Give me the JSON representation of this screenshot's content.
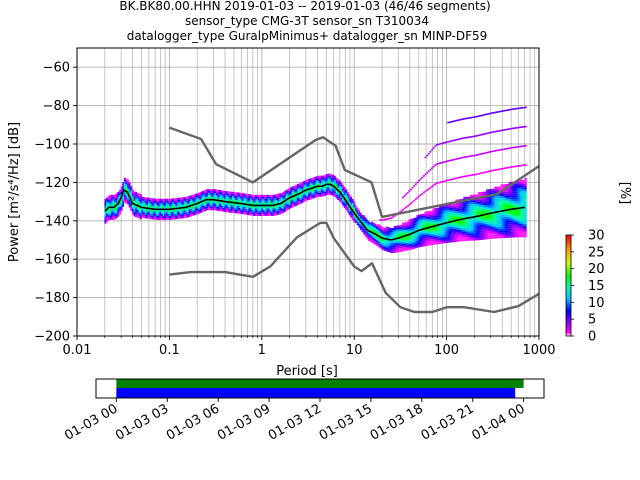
{
  "colors": {
    "background": "#ffffff",
    "noise_model": "#666666",
    "mode_line": "#000000",
    "grid": "#b0b0b0",
    "axes": "#000000",
    "coverage_data": "#0000ff",
    "coverage_gaps": "#008000"
  },
  "chart_data": [
    {
      "type": "heatmap",
      "title_lines": [
        "BK.BK80.00.HHN   2019-01-03 -- 2019-01-03  (46/46 segments)",
        "sensor_type CMG-3T sensor_sn T310034",
        "datalogger_type GuralpMinimus+ datalogger_sn MINP-DF59"
      ],
      "xlabel": "Period [s]",
      "ylabel": "Power [m²/s⁴/Hz] [dB]",
      "xscale": "log",
      "xlim": [
        0.01,
        1000
      ],
      "ylim": [
        -200,
        -50
      ],
      "grid": true,
      "x_tick_labels": [
        "0.01",
        "0.1",
        "1",
        "10",
        "100",
        "1000"
      ],
      "x_ticks": [
        0.01,
        0.1,
        1,
        10,
        100,
        1000
      ],
      "y_ticks": [
        -200,
        -180,
        -160,
        -140,
        -120,
        -100,
        -80,
        -60
      ],
      "y_tick_labels": [
        "−200",
        "−180",
        "−160",
        "−140",
        "−120",
        "−100",
        "−80",
        "−60"
      ],
      "colorbar": {
        "label": "[%]",
        "range": [
          0,
          30
        ],
        "ticks": [
          0,
          5,
          10,
          15,
          20,
          25,
          30
        ],
        "tick_labels": [
          "0",
          "5",
          "10",
          "15",
          "20",
          "25",
          "30"
        ]
      },
      "series": [
        {
          "role": "high_noise_model",
          "x": [
            0.1,
            0.22,
            0.32,
            0.8,
            3.8,
            4.6,
            6.3,
            7.9,
            15.4,
            20,
            354.8,
            1000
          ],
          "y": [
            -91.5,
            -97.4,
            -110.5,
            -120,
            -98,
            -96.5,
            -101,
            -113.5,
            -120,
            -138,
            -126,
            -111.5
          ]
        },
        {
          "role": "low_noise_model",
          "x": [
            0.1,
            0.17,
            0.4,
            0.8,
            1.24,
            2.4,
            4.3,
            5,
            6,
            10,
            12,
            15.6,
            21.9,
            31.6,
            45,
            70,
            101,
            154,
            328,
            600,
            1000
          ],
          "y": [
            -168,
            -166.7,
            -166.7,
            -169.2,
            -163.7,
            -148.6,
            -141.1,
            -141.1,
            -149,
            -163.8,
            -166.2,
            -162.1,
            -177.5,
            -185,
            -187.5,
            -187.5,
            -185,
            -185,
            -187.5,
            -184.4,
            -178
          ]
        },
        {
          "role": "mode",
          "x": [
            0.02,
            0.022,
            0.025,
            0.028,
            0.03,
            0.032,
            0.035,
            0.04,
            0.05,
            0.07,
            0.1,
            0.15,
            0.2,
            0.25,
            0.3,
            0.4,
            0.6,
            0.8,
            1.0,
            1.3,
            1.6,
            2.0,
            2.5,
            3.0,
            3.5,
            4.0,
            4.5,
            5.0,
            5.5,
            6.0,
            7.0,
            8.0,
            10.0,
            12.0,
            14.0,
            17.0,
            20.0,
            25.0,
            30.0,
            40.0,
            50.0,
            70.0,
            100.0,
            150.0,
            200.0,
            300.0,
            500.0,
            700.0
          ],
          "y": [
            -135,
            -133,
            -133,
            -131,
            -128,
            -124,
            -125,
            -131,
            -133,
            -134,
            -134,
            -133,
            -131,
            -129,
            -129,
            -130,
            -131,
            -132,
            -132,
            -132,
            -131,
            -128,
            -126,
            -124,
            -123,
            -122,
            -122,
            -121,
            -121,
            -122,
            -125,
            -129,
            -136,
            -141,
            -145,
            -147,
            -149,
            -150,
            -149,
            -147,
            -145,
            -143,
            -141,
            -139,
            -138,
            -136,
            -134,
            -133
          ]
        }
      ]
    },
    {
      "type": "timeline",
      "x_tick_labels": [
        "01-03 00",
        "01-03 03",
        "01-03 06",
        "01-03 09",
        "01-03 12",
        "01-03 15",
        "01-03 18",
        "01-03 21",
        "01-04 00"
      ],
      "x_ticks_hours": [
        0,
        3,
        6,
        9,
        12,
        15,
        18,
        21,
        24
      ],
      "xlim_hours": [
        -1.2,
        25.2
      ],
      "bars": [
        {
          "role": "gaps_coverage",
          "start_h": 0,
          "end_h": 24.0
        },
        {
          "role": "data_coverage",
          "start_h": 0,
          "end_h": 23.5
        }
      ]
    }
  ]
}
